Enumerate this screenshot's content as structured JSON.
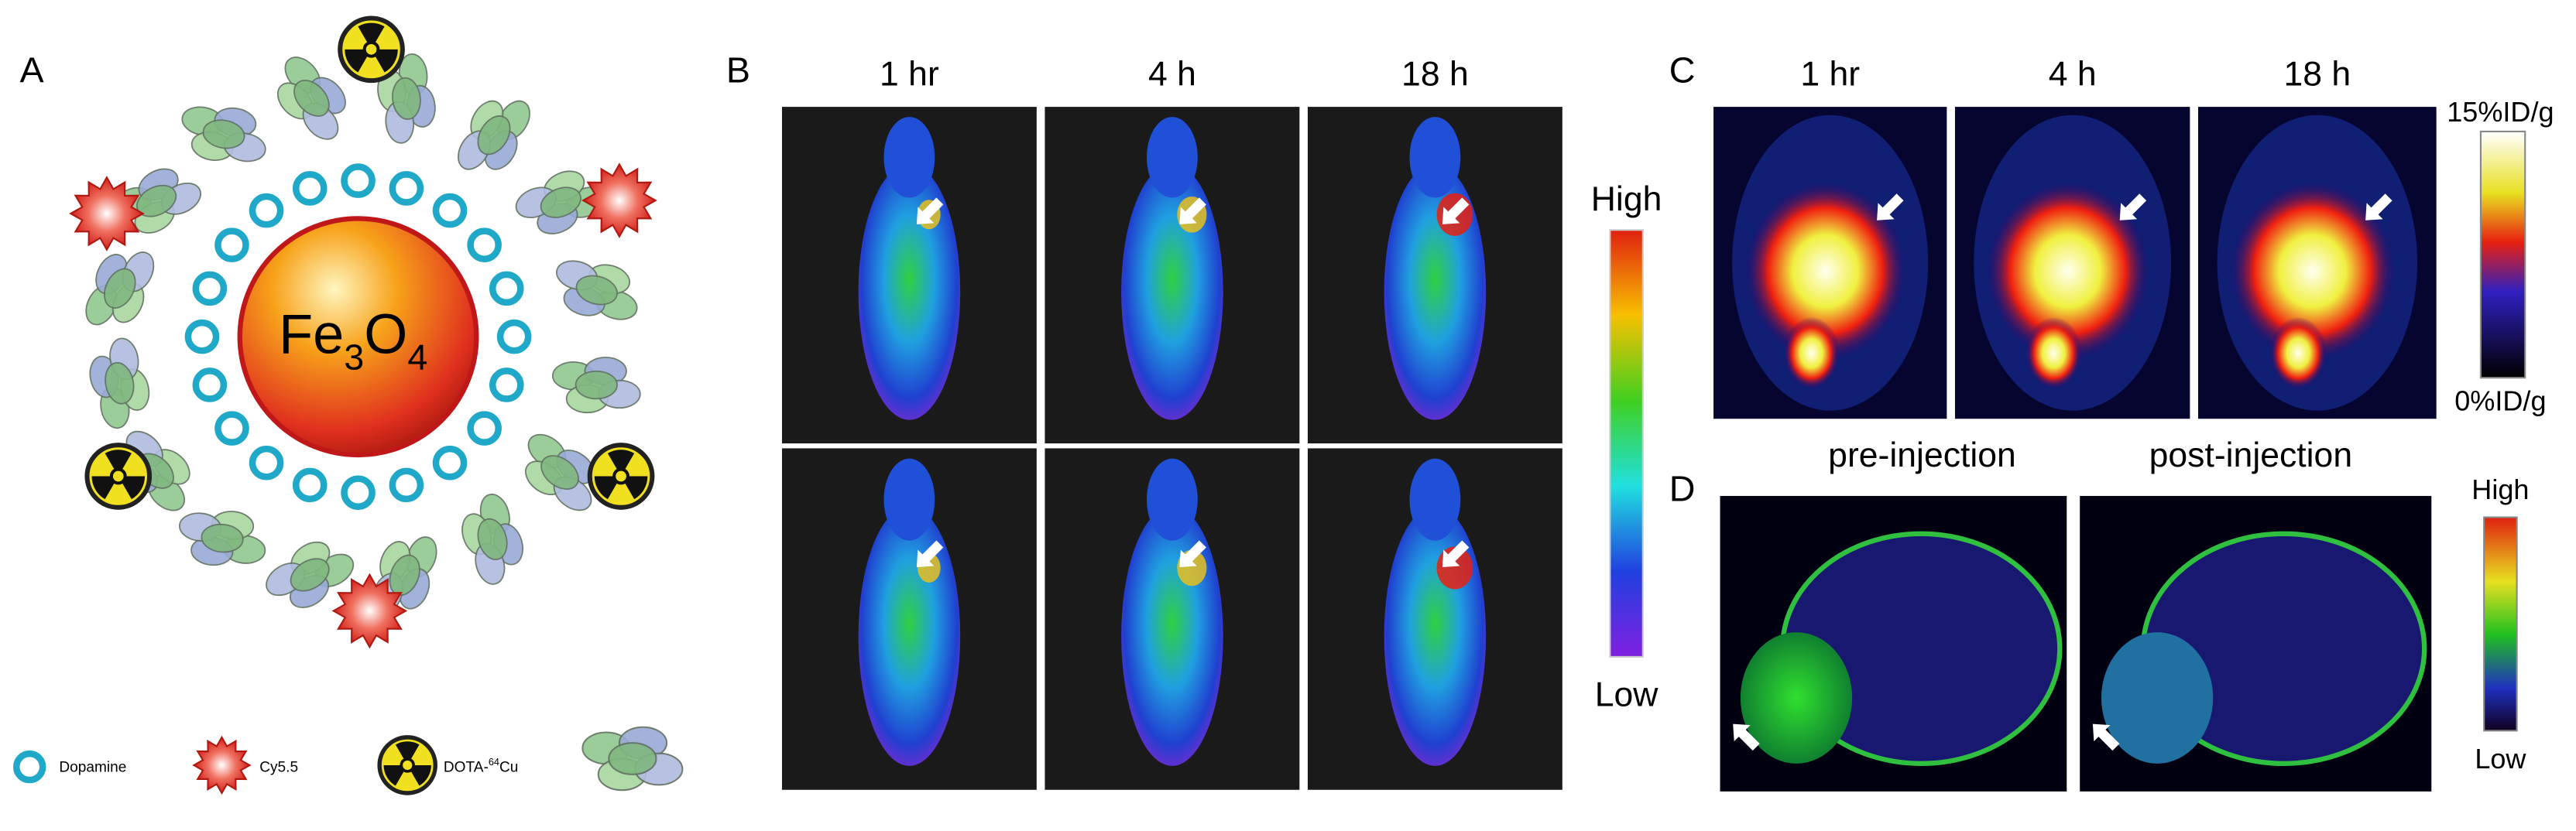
{
  "panel_a": {
    "label": "A",
    "core": {
      "element1": "Fe",
      "sub1": "3",
      "element2": "O",
      "sub2": "4"
    },
    "legend": [
      {
        "label": "Dopamine"
      },
      {
        "label": "Cy5.5"
      },
      {
        "prefix": "DOTA-",
        "sup": "64",
        "suffix": "Cu"
      }
    ]
  },
  "panel_b": {
    "label": "B",
    "times": [
      "1 hr",
      "4 h",
      "18 h"
    ],
    "scale": {
      "high": "High",
      "low": "Low"
    }
  },
  "panel_c": {
    "label": "C",
    "times": [
      "1 hr",
      "4 h",
      "18 h"
    ],
    "scale": {
      "max": "15%ID/g",
      "min": "0%ID/g"
    }
  },
  "panel_d": {
    "label": "D",
    "titles": [
      "pre-injection",
      "post-injection"
    ],
    "scale": {
      "high": "High",
      "low": "Low"
    }
  }
}
